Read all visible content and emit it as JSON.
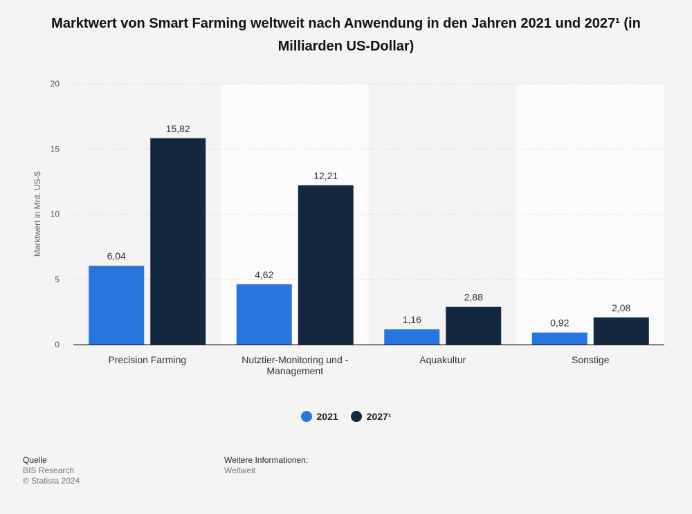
{
  "chart_title": "Marktwert von Smart Farming weltweit nach Anwendung in den Jahren 2021 und 2027¹ (in Milliarden US-Dollar)",
  "colors": {
    "2021": "#2876dd",
    "2027": "#13273f"
  },
  "chart_data": {
    "type": "bar",
    "title": "Marktwert von Smart Farming weltweit nach Anwendung in den Jahren 2021 und 2027¹ (in Milliarden US-Dollar)",
    "categories": [
      "Precision Farming",
      "Nutztier-Monitoring und -Management",
      "Aquakultur",
      "Sonstige"
    ],
    "category_lines": [
      [
        "Precision Farming"
      ],
      [
        "Nutztier-Monitoring und -",
        "Management"
      ],
      [
        "Aquakultur"
      ],
      [
        "Sonstige"
      ]
    ],
    "series": [
      {
        "name": "2021",
        "values": [
          6.04,
          4.62,
          1.16,
          0.92
        ],
        "labels": [
          "6,04",
          "4,62",
          "1,16",
          "0,92"
        ]
      },
      {
        "name": "2027¹",
        "values": [
          15.82,
          12.21,
          2.88,
          2.08
        ],
        "labels": [
          "15,82",
          "12,21",
          "2,88",
          "2,08"
        ]
      }
    ],
    "ylabel": "Marktwert in Mrd. US-$",
    "xlabel": "",
    "ylim": [
      0,
      20
    ],
    "yticks": [
      0,
      5,
      10,
      15,
      20
    ],
    "grid": true,
    "legend": "bottom-center"
  },
  "footer": {
    "source_heading": "Quelle",
    "source_name": "BIS Research",
    "copyright": "© Statista 2024",
    "info_heading": "Weitere Informationen:",
    "info_value": "Weltweit"
  }
}
